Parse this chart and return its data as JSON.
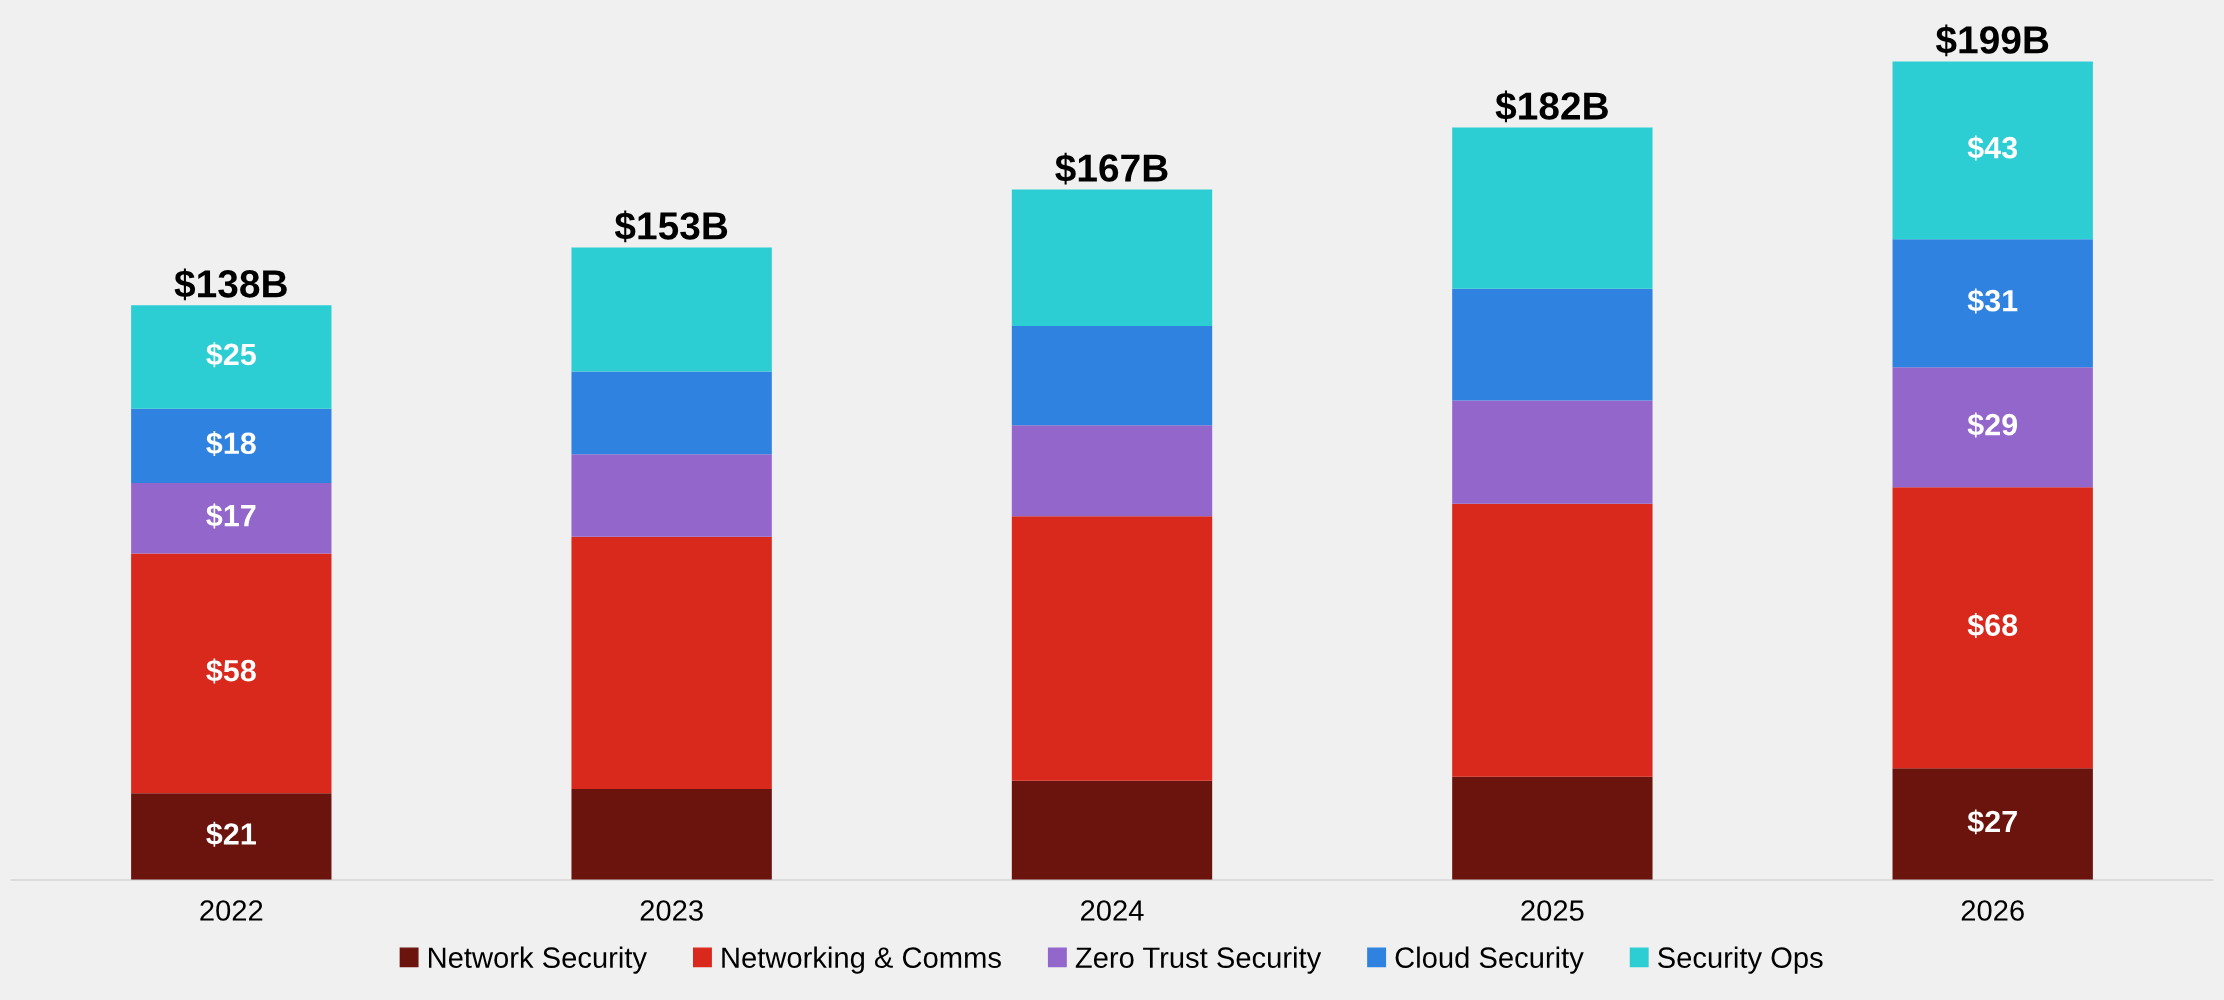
{
  "chart_data": {
    "type": "bar",
    "stacked": true,
    "categories": [
      "2022",
      "2023",
      "2024",
      "2025",
      "2026"
    ],
    "series": [
      {
        "name": "Network Security",
        "color": "#6b130d",
        "values": [
          21,
          22,
          24,
          25,
          27
        ],
        "value_labels": [
          "$21",
          null,
          null,
          null,
          "$27"
        ]
      },
      {
        "name": "Networking & Comms",
        "color": "#d9281c",
        "values": [
          58,
          61,
          64,
          66,
          68
        ],
        "value_labels": [
          "$58",
          null,
          null,
          null,
          "$68"
        ]
      },
      {
        "name": "Zero Trust Security",
        "color": "#9366cc",
        "values": [
          17,
          20,
          22,
          25,
          29
        ],
        "value_labels": [
          "$17",
          null,
          null,
          null,
          "$29"
        ]
      },
      {
        "name": "Cloud Security",
        "color": "#2f82e0",
        "values": [
          18,
          20,
          24,
          27,
          31
        ],
        "value_labels": [
          "$18",
          null,
          null,
          null,
          "$31"
        ]
      },
      {
        "name": "Security Ops",
        "color": "#2ccdd3",
        "values": [
          25,
          30,
          33,
          39,
          43
        ],
        "value_labels": [
          "$25",
          null,
          null,
          null,
          "$43"
        ]
      }
    ],
    "totals": [
      "$138B",
      "$153B",
      "$167B",
      "$182B",
      "$199B"
    ],
    "legend": "bottom",
    "grid": false
  }
}
